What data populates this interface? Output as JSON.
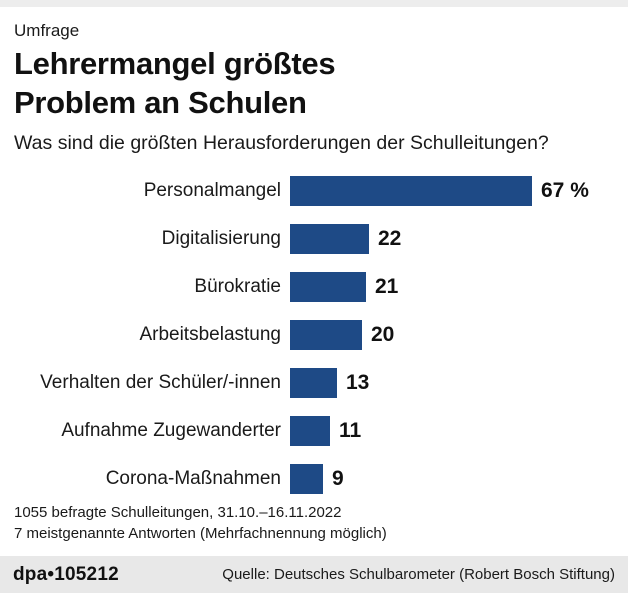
{
  "header": {
    "kicker": "Umfrage",
    "title_line1": "Lehrermangel größtes",
    "title_line2": "Problem an Schulen",
    "subtitle": "Was sind die größten Herausforderungen der Schulleitungen?"
  },
  "chart_data": {
    "type": "bar",
    "orientation": "horizontal",
    "title": "Lehrermangel größtes Problem an Schulen",
    "subtitle": "Was sind die größten Herausforderungen der Schulleitungen?",
    "categories": [
      "Personalmangel",
      "Digitalisierung",
      "Bürokratie",
      "Arbeitsbelastung",
      "Verhalten der Schüler/-innen",
      "Aufnahme Zugewanderter",
      "Corona-Maßnahmen"
    ],
    "values": [
      67,
      22,
      21,
      20,
      13,
      11,
      9
    ],
    "value_labels": [
      "67 %",
      "22",
      "21",
      "20",
      "13",
      "11",
      "9"
    ],
    "unit": "percent",
    "xlim": [
      0,
      67
    ],
    "grid": false,
    "legend": "none",
    "value_label_position": "right-of-bar"
  },
  "footnotes": {
    "line1": "1055 befragte Schulleitungen, 31.10.–16.11.2022",
    "line2": "7 meistgenannte Antworten (Mehrfachnennung möglich)"
  },
  "footer": {
    "brand": "dpa",
    "separator": "•",
    "graphic_id": "105212",
    "source": "Quelle: Deutsches Schulbarometer (Robert Bosch Stiftung)"
  },
  "colors": {
    "bar": "#1e4a86",
    "top_band": "#ededed",
    "bottom_bar": "#e8e8e8",
    "text": "#1a1a1a"
  }
}
